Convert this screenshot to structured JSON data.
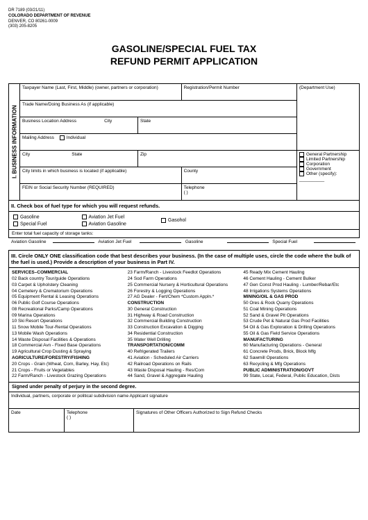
{
  "meta": {
    "form_no": "DR 7189 (03/21/11)",
    "agency": "COLORADO DEPARTMENT OF REVENUE",
    "address": "DENVER, CO 80261-0009",
    "phone": "(303) 205-8205"
  },
  "title_l1": "GASOLINE/SPECIAL FUEL TAX",
  "title_l2": "REFUND PERMIT APPLICATION",
  "section1": {
    "heading": "I. BUSINESS INFORMATION",
    "taxpayer": "Taxpayer Name (Last, First, Middle) (owner, partners or corporation)",
    "regpermit": "Registration/Permit Number",
    "deptuse": "(Department Use)",
    "tradename": "Trade Name/Doing Business As (if applicable)",
    "bizloc": "Business Location Address",
    "city": "City",
    "state": "State",
    "mailing": "Mailing Address",
    "individual": "Individual",
    "zip": "Zip",
    "citystate": "City",
    "state2": "State",
    "citylimits": "City limits in which business is located (if applicable)",
    "county": "County",
    "fein": "FEIN or Social Security Number (REQUIRED)",
    "telephone": "Telephone",
    "phone_paren": "(          )",
    "gen_partner": "General Partnership",
    "lim_partner": "Limited Partnership",
    "corp": "Corporation",
    "govt": "Government",
    "other": "Other (specify): __________"
  },
  "section2": {
    "heading": "II. Check box of fuel type for which you will request refunds.",
    "gasoline": "Gasoline",
    "special": "Special Fuel",
    "avjet": "Aviation Jet Fuel",
    "avgas": "Aviation Gasoline",
    "gasohol": "Gasohol",
    "capacity_label": "Enter total fuel capacity of storage tanks:",
    "c_avgas": "Aviation Gasoline",
    "c_avjet": "Aviation Jet Fuel",
    "c_gasoline": "Gasoline",
    "c_special": "Special Fuel"
  },
  "section3": {
    "heading": "III. Circle ONLY ONE classification code that best describes your business. (In the case of multiple uses, circle the code where the bulk of the fuel is  used.) Provide a description of your business in Part IV.",
    "col1": [
      {
        "b": "SERVICES–COMMERCIAL"
      },
      {
        "t": "02  Back country Tour/guide Operations"
      },
      {
        "t": "03  Carpet & Upholstery Cleaning"
      },
      {
        "t": "04  Cemetery & Crematorium Operations"
      },
      {
        "t": "05  Equipment Rental & Leasing Operations"
      },
      {
        "t": "06  Public Golf Course Operations"
      },
      {
        "t": "08  Recreational Parks/Camp Operations"
      },
      {
        "t": "09  Marina Operations"
      },
      {
        "t": "10  Ski Resort Operations"
      },
      {
        "t": "11  Snow Mobile Tour-Rental Operations"
      },
      {
        "t": "13  Mobile Wash Operations"
      },
      {
        "t": "14  Waste Disposal Facilities & Operations"
      },
      {
        "t": "18  Commercial Avn - Fixed Base Operations"
      },
      {
        "t": "19  Agricultural Crop Dusting & Spraying"
      },
      {
        "b": "AGRICULTURE/FORESTRY/FISHING"
      },
      {
        "t": "20  Crops - Grain (Wheat, Corn, Barley, Hay, Etc)"
      },
      {
        "t": "21  Crops - Fruits or Vegetables"
      },
      {
        "t": "22  Farm/Ranch - Livestock Grazing Operations"
      }
    ],
    "col2": [
      {
        "t": "23  Farm/Ranch - Livestock Feedlot Operations"
      },
      {
        "t": "24  Sod Farm Operations"
      },
      {
        "t": "25  Commercial Nursery & Horticultural Operations"
      },
      {
        "t": "26  Forestry & Logging Operations"
      },
      {
        "t": "27  AG Dealer - Fert/Chem *Custom Appln.*"
      },
      {
        "b": "CONSTRUCTION"
      },
      {
        "t": "30  General Construction"
      },
      {
        "t": "31  Highway & Road Construction"
      },
      {
        "t": "32  Commercial Building Construction"
      },
      {
        "t": "33  Construction Excavation & Digging"
      },
      {
        "t": "34  Residential Construction"
      },
      {
        "t": "35  Water Well Drilling"
      },
      {
        "b": "TRANSPORTATION/COMM"
      },
      {
        "t": "40  Refrigerated Trailers"
      },
      {
        "t": "41  Aviation - Scheduled Air Carriers"
      },
      {
        "t": "42  Railroad Operations on Rails"
      },
      {
        "t": "43  Waste Disposal Hauling - Res/Com"
      },
      {
        "t": "44  Sand, Gravel & Aggregate Hauling"
      }
    ],
    "col3": [
      {
        "t": "45  Ready Mix Cement Hauling"
      },
      {
        "t": "46  Cement Hauling - Cement Bulker"
      },
      {
        "t": "47  Gen Const Prod Hauling - Lumber/Rebar/Etc"
      },
      {
        "t": "48  Irrigations Systems Operations"
      },
      {
        "b": "MINING/OIL & GAS PROD"
      },
      {
        "t": "50  Ores & Rock Quarry Operations"
      },
      {
        "t": "51  Coal Mining Operations"
      },
      {
        "t": "52  Sand & Gravel Pit Operations"
      },
      {
        "t": "53  Crude Pet & Natural Gas Prod Facilities"
      },
      {
        "t": "54  Oil & Gas Exploration & Drilling Operations"
      },
      {
        "t": "55  Oil & Gas Field Service Operations"
      },
      {
        "b": "MANUFACTURING"
      },
      {
        "t": "60  Manufacturing Operations - General"
      },
      {
        "t": "61  Concrete Prods, Brick, Block Mfg"
      },
      {
        "t": "62  Sawmill Operations"
      },
      {
        "t": "63  Recycling & Mfg Operations"
      },
      {
        "b": "PUBLIC ADMINISTRATION/GOVT"
      },
      {
        "t": "99  State, Local, Federal, Public Education, Dists"
      }
    ]
  },
  "signature": {
    "perjury": "Signed under penalty of perjury in the second degree.",
    "applicant": "Individual, partners, corporate or political subdivision name Applicant signature",
    "date": "Date",
    "telephone": "Telephone",
    "phone_paren": "(          )",
    "officers": "Signatures of Other Officers Authorized to Sign Refund Checks"
  }
}
